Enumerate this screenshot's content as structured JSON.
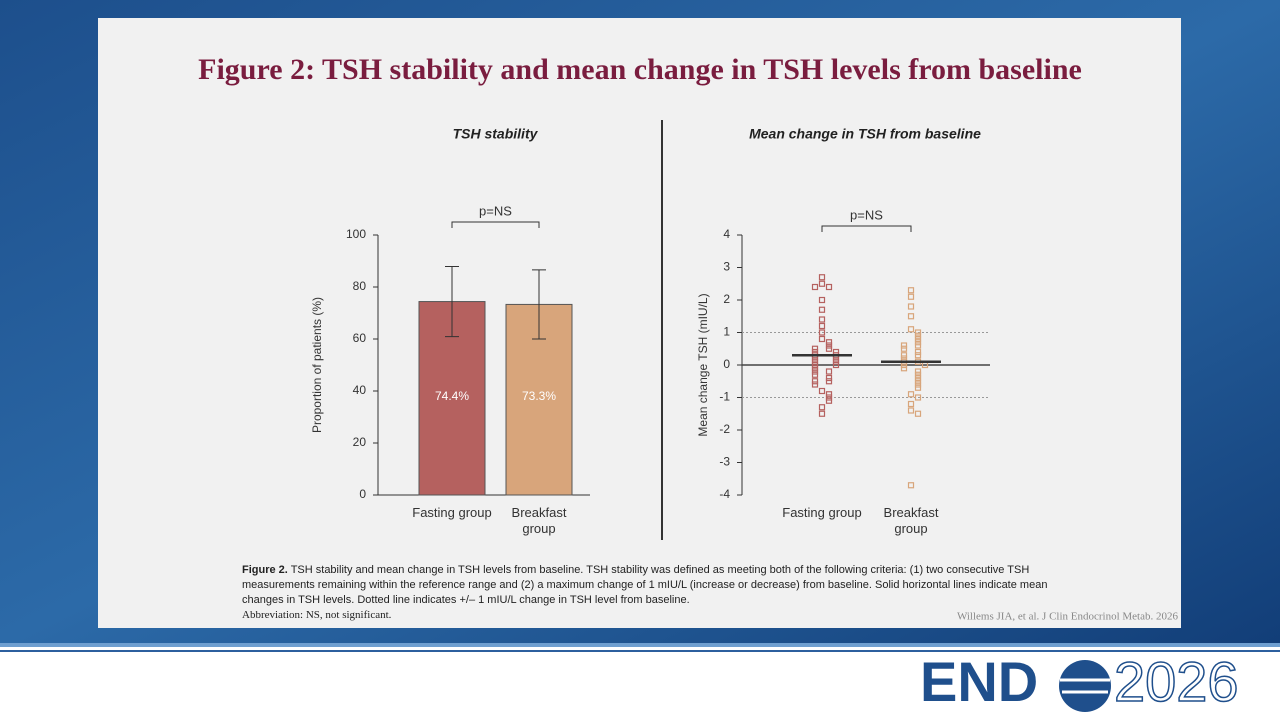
{
  "slide_title": "Figure 2: TSH stability and mean change in TSH levels from baseline",
  "chart_data": [
    {
      "type": "bar",
      "title": "TSH stability",
      "ylabel": "Proportion of patients (%)",
      "categories": [
        "Fasting group",
        "Breakfast group"
      ],
      "values": [
        74.4,
        73.3
      ],
      "value_labels": [
        "74.4%",
        "73.3%"
      ],
      "errors": [
        13.5,
        13.3
      ],
      "colors": [
        "#b5615f",
        "#d8a57b"
      ],
      "annotation": "p=NS",
      "ylim": [
        0,
        100
      ],
      "yticks": [
        0,
        20,
        40,
        60,
        80,
        100
      ]
    },
    {
      "type": "strip",
      "title": "Mean change in TSH from baseline",
      "ylabel": "Mean change TSH (mIU/L)",
      "categories": [
        "Fasting group",
        "Breakfast group"
      ],
      "groups": [
        {
          "color": "#b5615f",
          "mean": 0.3,
          "values": [
            2.7,
            2.5,
            2.4,
            2.4,
            2.0,
            1.7,
            1.4,
            1.2,
            1.0,
            0.8,
            0.7,
            0.6,
            0.5,
            0.5,
            0.4,
            0.4,
            0.3,
            0.3,
            0.2,
            0.2,
            0.1,
            0.1,
            0.0,
            0.0,
            -0.1,
            -0.2,
            -0.2,
            -0.3,
            -0.4,
            -0.5,
            -0.5,
            -0.6,
            -0.8,
            -0.9,
            -1.0,
            -1.1,
            -1.3,
            -1.5
          ]
        },
        {
          "color": "#d8a57b",
          "mean": 0.1,
          "values": [
            2.3,
            2.1,
            1.8,
            1.5,
            1.1,
            1.0,
            0.9,
            0.8,
            0.7,
            0.6,
            0.6,
            0.5,
            0.4,
            0.3,
            0.3,
            0.2,
            0.1,
            0.1,
            0.0,
            0.0,
            -0.1,
            -0.2,
            -0.3,
            -0.4,
            -0.5,
            -0.6,
            -0.7,
            -0.9,
            -1.0,
            -1.2,
            -1.4,
            -1.5,
            -3.7
          ]
        }
      ],
      "reference_lines": [
        1,
        -1
      ],
      "annotation": "p=NS",
      "ylim": [
        -4,
        4
      ],
      "yticks": [
        -4,
        -3,
        -2,
        -1,
        0,
        1,
        2,
        3,
        4
      ]
    }
  ],
  "caption_label": "Figure 2.",
  "caption": "TSH stability and mean change in TSH levels from baseline. TSH stability was defined as meeting both of the following criteria: (1) two consecutive TSH measurements remaining within the reference range and (2) a maximum change of 1 mIU/L (increase or decrease) from baseline. Solid horizontal lines indicate mean changes in TSH levels. Dotted line indicates +/– 1 mIU/L change in TSH level from baseline.",
  "abbreviation": "Abbreviation: NS, not significant.",
  "citation": "Willems JIA, et al. J Clin Endocrinol Metab. 2026",
  "logo": {
    "left": "END",
    "right": "2026"
  }
}
